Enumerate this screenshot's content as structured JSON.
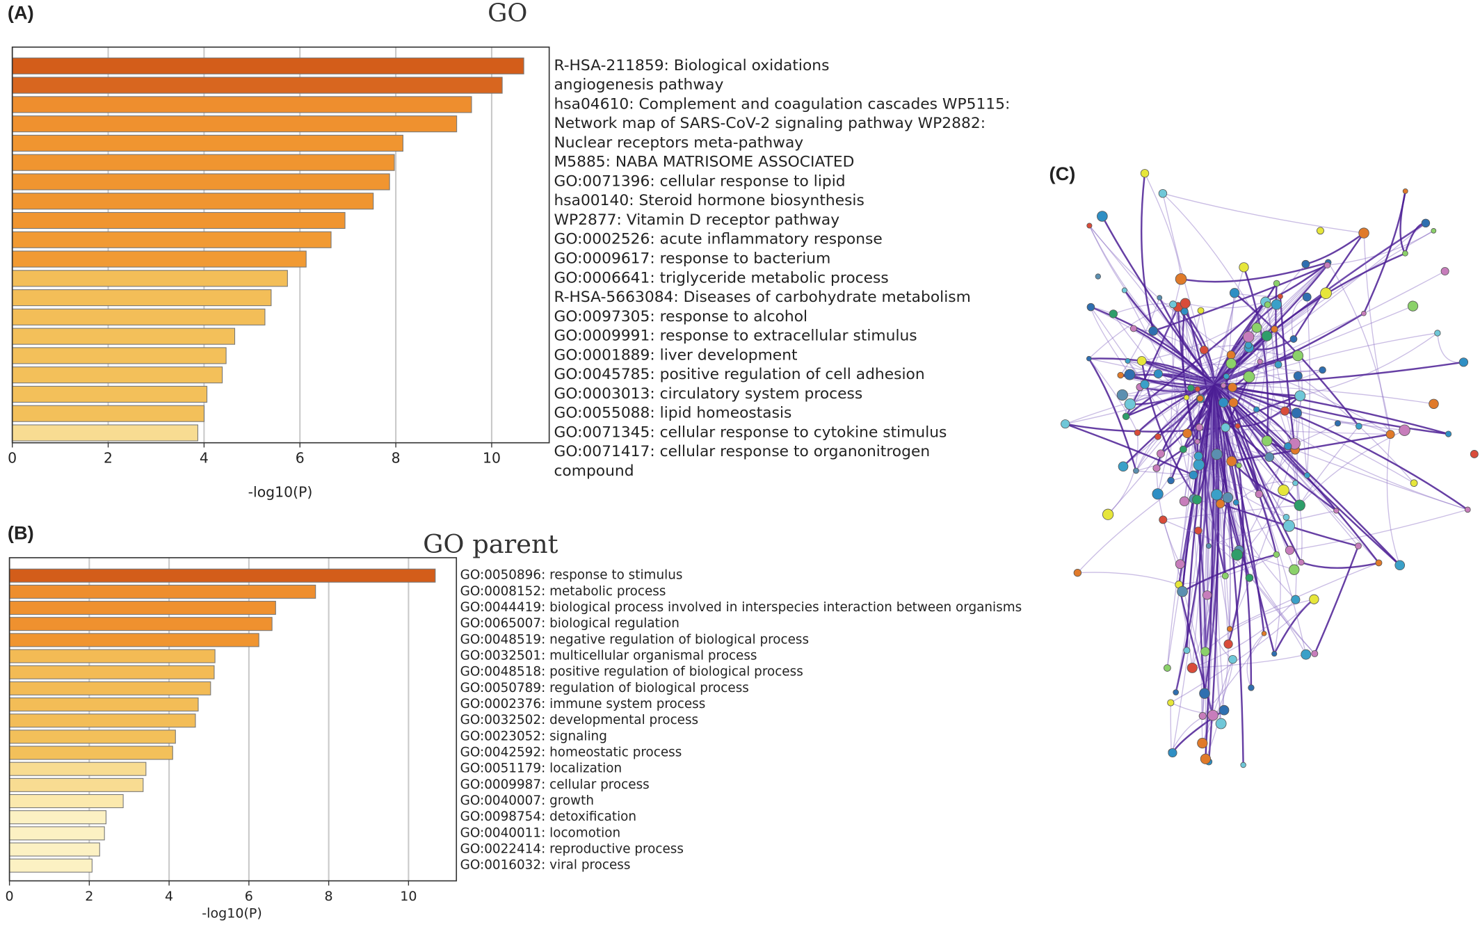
{
  "panel_labels": [
    "(A)",
    "(B)",
    "(C)"
  ],
  "chart_data": [
    {
      "type": "barh",
      "title": "GO",
      "xlabel": "-log10(P)",
      "values": [
        10.67,
        10.22,
        9.58,
        9.27,
        8.15,
        7.97,
        7.87,
        7.53,
        6.94,
        6.65,
        6.13,
        5.74,
        5.4,
        5.27,
        4.64,
        4.46,
        4.38,
        4.06,
        4.0,
        3.87
      ],
      "colors": [
        "#d35d1a",
        "#d8661f",
        "#ee8e2e",
        "#ef912f",
        "#f09530",
        "#f09530",
        "#f09530",
        "#f09530",
        "#f09530",
        "#f19a33",
        "#f19a33",
        "#f3be58",
        "#f3be58",
        "#f3be58",
        "#f3c05a",
        "#f3c05a",
        "#f3c05a",
        "#f3c05a",
        "#f3c05a",
        "#f8dc92"
      ],
      "label_lines": [
        "R-HSA-211859: Biological oxidations",
        "angiogenesis pathway",
        "hsa04610: Complement and coagulation cascades WP5115:",
        "Network map of SARS-CoV-2 signaling pathway WP2882:",
        "Nuclear receptors meta-pathway",
        "M5885: NABA MATRISOME ASSOCIATED",
        "GO:0071396: cellular response to lipid",
        "hsa00140: Steroid hormone biosynthesis",
        "WP2877: Vitamin D receptor pathway",
        "GO:0002526: acute inflammatory response",
        "GO:0009617: response to bacterium",
        "GO:0006641: triglyceride metabolic process",
        "R-HSA-5663084: Diseases of carbohydrate metabolism",
        "GO:0097305: response to alcohol",
        "GO:0009991: response to extracellular stimulus",
        "GO:0001889: liver development",
        "GO:0045785: positive regulation of cell adhesion",
        "GO:0003013: circulatory system process",
        "GO:0055088: lipid homeostasis",
        "GO:0071345: cellular response to cytokine stimulus",
        "GO:0071417: cellular response to organonitrogen",
        "compound"
      ],
      "xlim": [
        0,
        11.2
      ],
      "xticks": [
        0,
        2,
        4,
        6,
        8,
        10
      ],
      "grid": true
    },
    {
      "type": "barh",
      "title": "GO parent",
      "xlabel": "-log10(P)",
      "categories": [
        "GO:0050896: response to stimulus",
        "GO:0008152: metabolic process",
        "GO:0044419: biological process involved in interspecies interaction between organisms",
        "GO:0065007: biological regulation",
        "GO:0048519: negative regulation of biological process",
        "GO:0032501: multicellular organismal process",
        "GO:0048518: positive regulation of biological process",
        "GO:0050789: regulation of biological process",
        "GO:0002376: immune system process",
        "GO:0032502: developmental process",
        "GO:0023052: signaling",
        "GO:0042592: homeostatic process",
        "GO:0051179: localization",
        "GO:0009987: cellular process",
        "GO:0040007: growth",
        "GO:0098754: detoxification",
        "GO:0040011: locomotion",
        "GO:0022414: reproductive process",
        "GO:0016032: viral process"
      ],
      "values": [
        10.67,
        7.67,
        6.67,
        6.58,
        6.25,
        5.15,
        5.13,
        5.04,
        4.73,
        4.66,
        4.16,
        4.09,
        3.42,
        3.35,
        2.85,
        2.42,
        2.38,
        2.26,
        2.07
      ],
      "colors": [
        "#d35d1a",
        "#ee8e2e",
        "#ef912f",
        "#ef912f",
        "#f09530",
        "#f3bb55",
        "#f3bb55",
        "#f3bb55",
        "#f3bd57",
        "#f3bd57",
        "#f3c05a",
        "#f3c05a",
        "#f8dc92",
        "#f8dc92",
        "#fbe9ad",
        "#fcf1c3",
        "#fcf1c3",
        "#fcf1c3",
        "#fcf1c3"
      ],
      "xlim": [
        0,
        11.2
      ],
      "xticks": [
        0,
        2,
        4,
        6,
        8,
        10
      ],
      "grid": true
    }
  ]
}
